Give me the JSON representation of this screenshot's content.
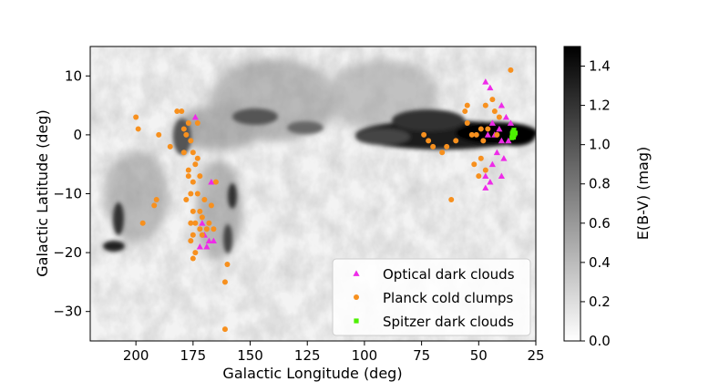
{
  "chart_data": {
    "type": "scatter",
    "xlabel": "Galactic Longitude (deg)",
    "ylabel": "Galactic Latitude (deg)",
    "xlim": [
      220,
      25
    ],
    "ylim": [
      -35,
      15
    ],
    "x_ticks": [
      200,
      175,
      150,
      125,
      100,
      75,
      50,
      25
    ],
    "y_ticks": [
      10,
      0,
      -10,
      -20,
      -30
    ],
    "background": "grayscale extinction map",
    "colorbar": {
      "label": "E(B-V) (mag)",
      "range": [
        0.0,
        1.5
      ],
      "ticks": [
        0.0,
        0.2,
        0.4,
        0.6,
        0.8,
        1.0,
        1.2,
        1.4
      ],
      "colormap": "gray_r"
    },
    "legend_position": "lower-right",
    "series": [
      {
        "name": "Optical dark clouds",
        "marker": "triangle",
        "color": "#ee2be8",
        "points": [
          [
            174,
            3
          ],
          [
            167,
            -8
          ],
          [
            171,
            -15
          ],
          [
            170,
            -17
          ],
          [
            168,
            -18
          ],
          [
            166,
            -18
          ],
          [
            172,
            -19
          ],
          [
            169,
            -19
          ],
          [
            47,
            9
          ],
          [
            45,
            8
          ],
          [
            40,
            5
          ],
          [
            38,
            3
          ],
          [
            44,
            2
          ],
          [
            41,
            1
          ],
          [
            36,
            2
          ],
          [
            43,
            0
          ],
          [
            46,
            0
          ],
          [
            40,
            -1
          ],
          [
            37,
            -1
          ],
          [
            42,
            -3
          ],
          [
            39,
            -4
          ],
          [
            44,
            -5
          ],
          [
            40,
            -7
          ],
          [
            47,
            -7
          ],
          [
            45,
            -8
          ],
          [
            47,
            -9
          ]
        ]
      },
      {
        "name": "Planck cold clumps",
        "marker": "circle",
        "color": "#f7901e",
        "points": [
          [
            200,
            3
          ],
          [
            199,
            1
          ],
          [
            190,
            0
          ],
          [
            185,
            -2
          ],
          [
            182,
            4
          ],
          [
            180,
            4
          ],
          [
            179,
            1
          ],
          [
            178,
            0
          ],
          [
            177,
            2
          ],
          [
            176,
            -1
          ],
          [
            175,
            -3
          ],
          [
            173,
            -4
          ],
          [
            172,
            -7
          ],
          [
            174,
            -5
          ],
          [
            177,
            -7
          ],
          [
            176,
            -10
          ],
          [
            173,
            -10
          ],
          [
            170,
            -11
          ],
          [
            178,
            -11
          ],
          [
            175,
            -13
          ],
          [
            172,
            -13
          ],
          [
            174,
            -15
          ],
          [
            175,
            -17
          ],
          [
            172,
            -16
          ],
          [
            171,
            -17
          ],
          [
            174,
            -20
          ],
          [
            175,
            -21
          ],
          [
            176,
            -18
          ],
          [
            169,
            -16
          ],
          [
            168,
            -15
          ],
          [
            166,
            -16
          ],
          [
            167,
            -12
          ],
          [
            165,
            -8
          ],
          [
            191,
            -11
          ],
          [
            192,
            -12
          ],
          [
            197,
            -15
          ],
          [
            160,
            -22
          ],
          [
            161,
            -25
          ],
          [
            161,
            -33
          ],
          [
            173,
            2
          ],
          [
            177,
            -6
          ],
          [
            179,
            -3
          ],
          [
            175,
            -8
          ],
          [
            171,
            -14
          ],
          [
            176,
            -15
          ],
          [
            36,
            11
          ],
          [
            74,
            0
          ],
          [
            72,
            -1
          ],
          [
            70,
            -2
          ],
          [
            66,
            -3
          ],
          [
            64,
            -2
          ],
          [
            56,
            4
          ],
          [
            55,
            5
          ],
          [
            55,
            2
          ],
          [
            53,
            0
          ],
          [
            51,
            0
          ],
          [
            49,
            1
          ],
          [
            47,
            5
          ],
          [
            44,
            6
          ],
          [
            43,
            4
          ],
          [
            41,
            3
          ],
          [
            48,
            -1
          ],
          [
            52,
            -5
          ],
          [
            50,
            -7
          ],
          [
            47,
            -6
          ],
          [
            49,
            -4
          ],
          [
            60,
            -1
          ],
          [
            62,
            -11
          ],
          [
            46,
            1
          ],
          [
            42,
            0
          ]
        ]
      },
      {
        "name": "Spitzer dark clouds",
        "marker": "square",
        "color": "#4df000",
        "points": [
          [
            35,
            0.5
          ],
          [
            34.5,
            0
          ],
          [
            35.5,
            -0.5
          ],
          [
            34,
            0.3
          ],
          [
            35,
            -0.2
          ],
          [
            34.6,
            0.8
          ],
          [
            35.3,
            0.2
          ],
          [
            34.8,
            -0.4
          ]
        ]
      }
    ]
  }
}
